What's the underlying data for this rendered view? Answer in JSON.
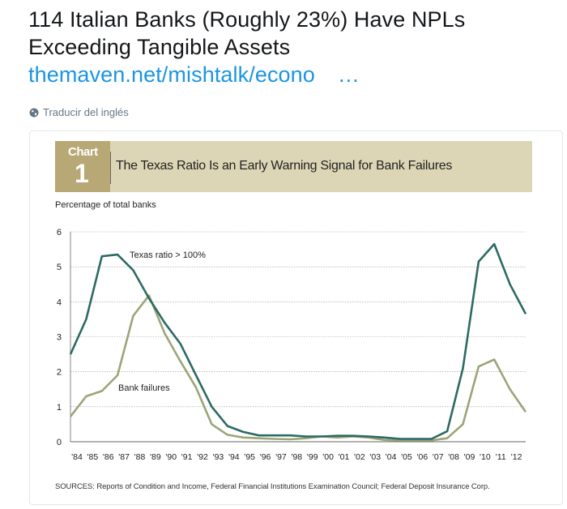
{
  "tweet": {
    "text": "114 Italian Banks (Roughly 23%) Have NPLs Exceeding Tangible Assets",
    "link": "themaven.net/mishtalk/econo",
    "ellipsis": "…",
    "translate_label": "Traducir del inglés",
    "translate_icon": "globe-icon"
  },
  "card": {
    "badge_label": "Chart",
    "badge_number": "1",
    "title": "The Texas Ratio Is an Early Warning Signal for Bank Failures",
    "colors": {
      "banner": "#ddd6b6",
      "badge": "#b8a875",
      "texas": "#2d6a63",
      "failures": "#9aa678"
    },
    "sources": "SOURCES: Reports of Condition and Income, Federal Financial Institutions Examination Council; Federal Deposit Insurance Corp."
  },
  "chart_data": {
    "type": "line",
    "title": "The Texas Ratio Is an Early Warning Signal for Bank Failures",
    "ylabel": "Percentage of total banks",
    "ylim": [
      0,
      6
    ],
    "yticks": [
      0,
      1,
      2,
      3,
      4,
      5,
      6
    ],
    "grid": true,
    "xticks": [
      "'84",
      "'85",
      "'86",
      "'87",
      "'88",
      "'89",
      "'90",
      "'91",
      "'92",
      "'93",
      "'94",
      "'95",
      "'96",
      "'97",
      "'98",
      "'99",
      "'00",
      "'01",
      "'02",
      "'03",
      "'04",
      "'05",
      "'06",
      "'07",
      "'08",
      "'09",
      "'10",
      "'11",
      "'12"
    ],
    "x": [
      1984,
      1985,
      1986,
      1987,
      1988,
      1989,
      1990,
      1991,
      1992,
      1993,
      1994,
      1995,
      1996,
      1997,
      1998,
      1999,
      2000,
      2001,
      2002,
      2003,
      2004,
      2005,
      2006,
      2007,
      2008,
      2009,
      2010,
      2011,
      2012,
      2013
    ],
    "series": [
      {
        "name": "Texas ratio > 100%",
        "values": [
          2.5,
          3.5,
          5.3,
          5.35,
          4.9,
          4.1,
          3.4,
          2.8,
          1.9,
          1.0,
          0.45,
          0.28,
          0.18,
          0.18,
          0.18,
          0.15,
          0.15,
          0.17,
          0.17,
          0.15,
          0.12,
          0.08,
          0.08,
          0.08,
          0.3,
          2.1,
          5.15,
          5.65,
          4.5,
          3.65
        ]
      },
      {
        "name": "Bank failures",
        "values": [
          0.72,
          1.3,
          1.45,
          1.9,
          3.6,
          4.18,
          3.1,
          2.3,
          1.55,
          0.5,
          0.2,
          0.12,
          0.1,
          0.08,
          0.07,
          0.1,
          0.15,
          0.12,
          0.15,
          0.12,
          0.05,
          0.04,
          0.04,
          0.04,
          0.1,
          0.5,
          2.15,
          2.35,
          1.5,
          0.85
        ]
      }
    ]
  }
}
